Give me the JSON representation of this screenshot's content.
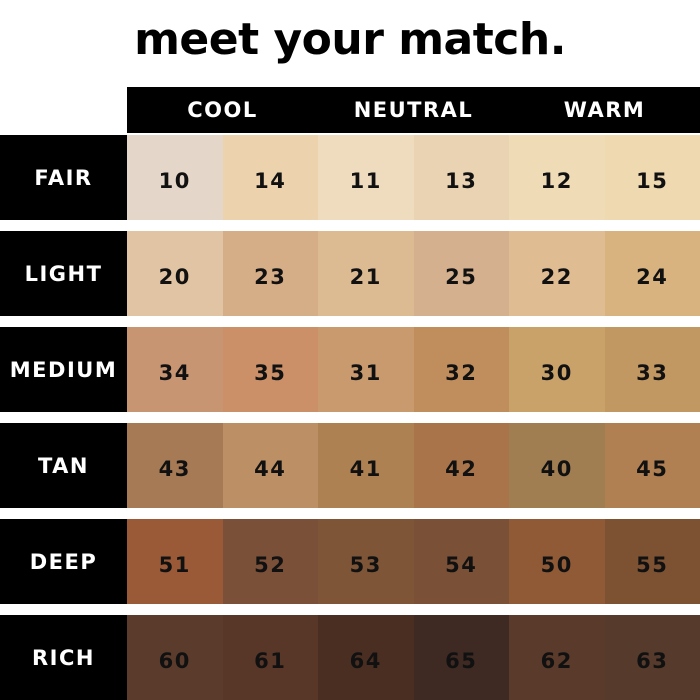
{
  "title": "meet your match.",
  "columns": [
    "COOL",
    "NEUTRAL",
    "WARM"
  ],
  "rows": [
    {
      "label": "FAIR",
      "shades": [
        {
          "n": "10",
          "color": "#e4d6c8"
        },
        {
          "n": "14",
          "color": "#ecd2ad"
        },
        {
          "n": "11",
          "color": "#efdcbf"
        },
        {
          "n": "13",
          "color": "#ead3b3"
        },
        {
          "n": "12",
          "color": "#efdbb6"
        },
        {
          "n": "15",
          "color": "#eed9b0"
        }
      ]
    },
    {
      "label": "LIGHT",
      "shades": [
        {
          "n": "20",
          "color": "#e1c4a3"
        },
        {
          "n": "23",
          "color": "#d5ad87"
        },
        {
          "n": "21",
          "color": "#dcba92"
        },
        {
          "n": "25",
          "color": "#d5b08e"
        },
        {
          "n": "22",
          "color": "#e0bc92"
        },
        {
          "n": "24",
          "color": "#d9b37f"
        }
      ]
    },
    {
      "label": "MEDIUM",
      "shades": [
        {
          "n": "34",
          "color": "#c89572"
        },
        {
          "n": "35",
          "color": "#cc9068"
        },
        {
          "n": "31",
          "color": "#c89a6e"
        },
        {
          "n": "32",
          "color": "#c08e5c"
        },
        {
          "n": "30",
          "color": "#c9a26a"
        },
        {
          "n": "33",
          "color": "#c29862"
        }
      ]
    },
    {
      "label": "TAN",
      "shades": [
        {
          "n": "43",
          "color": "#a57a55"
        },
        {
          "n": "44",
          "color": "#bd8f64"
        },
        {
          "n": "41",
          "color": "#ad8152"
        },
        {
          "n": "42",
          "color": "#a97449"
        },
        {
          "n": "40",
          "color": "#a07e52"
        },
        {
          "n": "45",
          "color": "#b07f52"
        }
      ]
    },
    {
      "label": "DEEP",
      "shades": [
        {
          "n": "51",
          "color": "#9a5a38"
        },
        {
          "n": "52",
          "color": "#7a5038"
        },
        {
          "n": "53",
          "color": "#7e5537"
        },
        {
          "n": "54",
          "color": "#7a5136"
        },
        {
          "n": "50",
          "color": "#8f5a35"
        },
        {
          "n": "55",
          "color": "#7d5232"
        }
      ]
    },
    {
      "label": "RICH",
      "shades": [
        {
          "n": "60",
          "color": "#5b3c2c"
        },
        {
          "n": "61",
          "color": "#583628"
        },
        {
          "n": "64",
          "color": "#4a2e22"
        },
        {
          "n": "65",
          "color": "#3e2a22"
        },
        {
          "n": "62",
          "color": "#5a3a2a"
        },
        {
          "n": "63",
          "color": "#563a2c"
        }
      ]
    }
  ]
}
